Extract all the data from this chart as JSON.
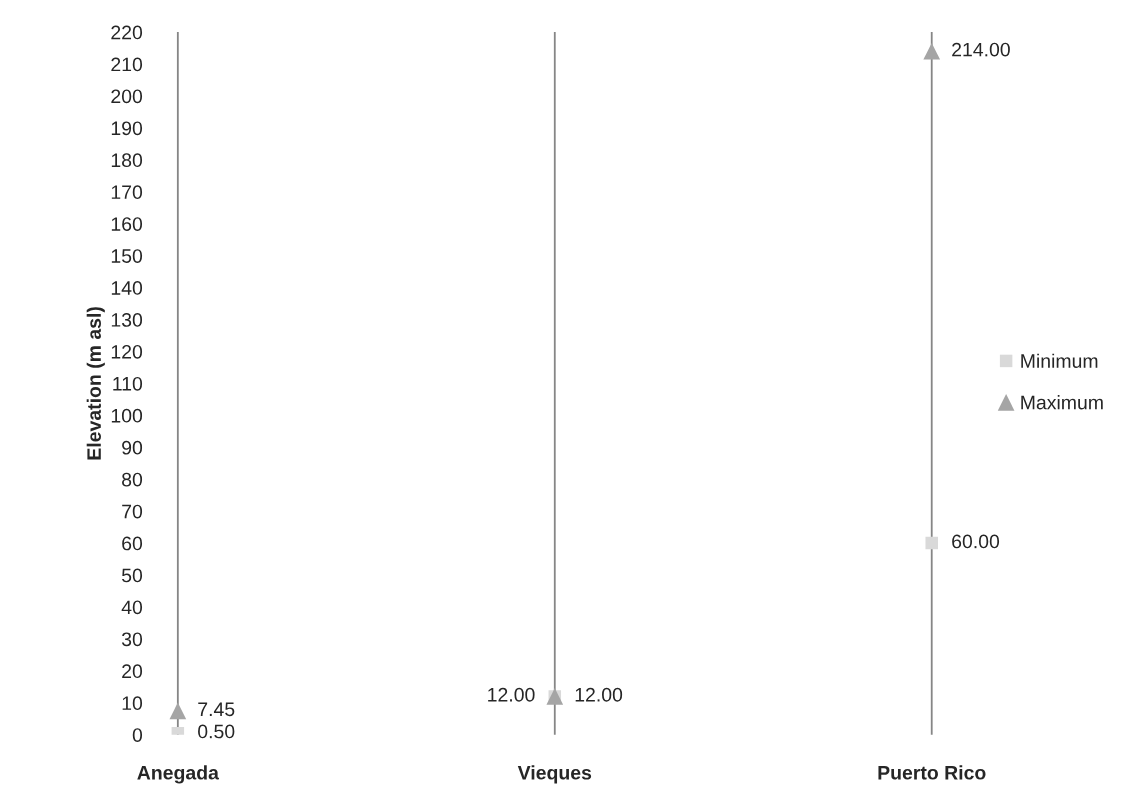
{
  "chart_data": {
    "type": "scatter",
    "ylabel": "Elevation (m asl)",
    "categories": [
      "Anegada",
      "Vieques",
      "Puerto Rico"
    ],
    "series": [
      {
        "name": "Minimum",
        "color": "#d9d9d9",
        "marker": "square",
        "values": [
          0.5,
          12,
          60
        ],
        "value_labels": [
          "0.50",
          "12.00",
          "60.00"
        ]
      },
      {
        "name": "Maximum",
        "color": "#a5a5a5",
        "marker": "triangle",
        "values": [
          7.45,
          12,
          214
        ],
        "value_labels": [
          "7.45",
          "12.00",
          "214.00"
        ]
      }
    ],
    "ylim": [
      0,
      220
    ],
    "yticks": [
      0,
      10,
      20,
      30,
      40,
      50,
      60,
      70,
      80,
      90,
      100,
      110,
      120,
      130,
      140,
      150,
      160,
      170,
      180,
      190,
      200,
      210,
      220
    ],
    "grid": "x",
    "legend": "right"
  }
}
